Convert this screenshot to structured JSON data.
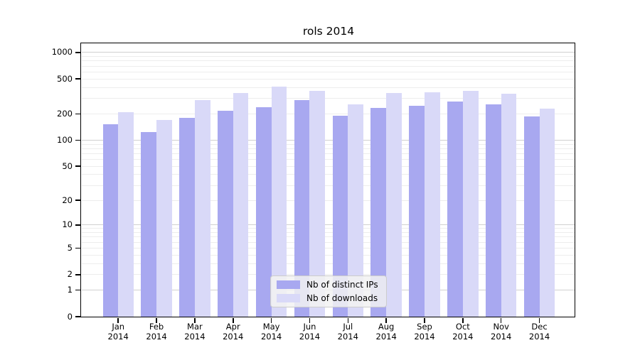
{
  "chart_data": {
    "type": "bar",
    "title": "rols 2014",
    "categories": [
      "Jan",
      "Feb",
      "Mar",
      "Apr",
      "May",
      "Jun",
      "Jul",
      "Aug",
      "Sep",
      "Oct",
      "Nov",
      "Dec"
    ],
    "category_year": "2014",
    "series": [
      {
        "name": "Nb of distinct IPs",
        "color": "#a8a8f0",
        "values": [
          152,
          123,
          179,
          218,
          240,
          289,
          189,
          232,
          248,
          274,
          258,
          188
        ]
      },
      {
        "name": "Nb of downloads",
        "color": "#d9d9f8",
        "values": [
          210,
          170,
          286,
          346,
          410,
          368,
          258,
          348,
          350,
          368,
          341,
          230
        ]
      }
    ],
    "yscale": "log1p",
    "ylim": [
      0,
      1258
    ],
    "yticks": [
      1000,
      500,
      200,
      100,
      50,
      20,
      10,
      5,
      2,
      1,
      0
    ],
    "grid": {
      "major_values": [
        1,
        10,
        100,
        1000
      ],
      "major_color": "#d0d0d0",
      "minor_color": "#ededed",
      "minor_decades": [
        1,
        10,
        100
      ]
    },
    "legend": {
      "position": "lower center",
      "background": "#f2f2f2",
      "border": "#cccccc"
    },
    "frame_color": "#000000"
  }
}
